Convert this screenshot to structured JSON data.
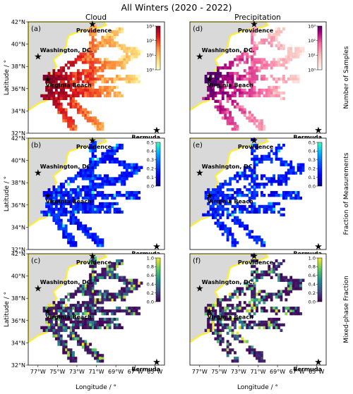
{
  "figure": {
    "title": "All Winters (2020 - 2022)",
    "column_titles": [
      "Cloud",
      "Precipitation"
    ],
    "ylabel": "Latitude / °",
    "xlabel": "Longitude / °",
    "panel_labels": [
      "(a)",
      "(b)",
      "(c)",
      "(d)",
      "(e)",
      "(f)"
    ],
    "row_colorbar_labels": [
      "Number of Samples",
      "Fraction of Measurements",
      "Mixed-phase Fraction"
    ],
    "xticks": [
      "77°W",
      "75°W",
      "73°W",
      "71°W",
      "69°W",
      "67°W",
      "65°W"
    ],
    "yticks": [
      "42°N",
      "40°N",
      "38°N",
      "36°N",
      "34°N",
      "32°N"
    ],
    "cities": [
      {
        "name": "Providence",
        "lon": -71.4,
        "lat": 41.8
      },
      {
        "name": "Washington, DC.",
        "lon": -77.0,
        "lat": 38.9
      },
      {
        "name": "Virginia Beach",
        "lon": -76.0,
        "lat": 36.85
      },
      {
        "name": "Bermuda",
        "lon": -64.8,
        "lat": 32.3
      }
    ],
    "colorbars": [
      {
        "ticks": [
          "10³",
          "10²",
          "10¹",
          "10⁰"
        ],
        "scale": "log",
        "range": [
          1,
          1000
        ],
        "colormap": "YlOrRd"
      },
      {
        "ticks": [
          "0.5",
          "0.4",
          "0.3",
          "0.2",
          "0.1",
          "0.0"
        ],
        "range": [
          0,
          0.5
        ],
        "colormap": "jet-like"
      },
      {
        "ticks": [
          "1.0",
          "0.8",
          "0.6",
          "0.4",
          "0.2",
          "0.0"
        ],
        "range": [
          0,
          1.0
        ],
        "colormap": "viridis"
      }
    ],
    "colors": {
      "land": "#d9d9d9",
      "coast": "#ffee33",
      "ocean": "#ffffff"
    }
  }
}
